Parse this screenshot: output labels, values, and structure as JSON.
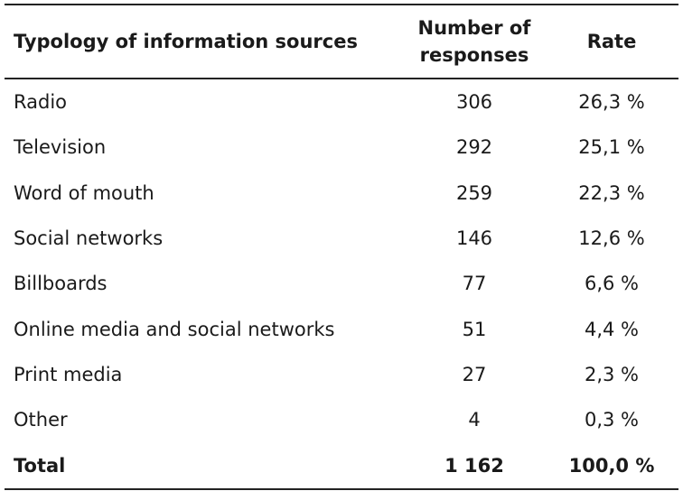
{
  "table": {
    "headers": {
      "source": "Typology of information sources",
      "responses_line1": "Number of",
      "responses_line2": "responses",
      "rate": "Rate"
    },
    "rows": [
      {
        "source": "Radio",
        "responses": "306",
        "rate": "26,3 %"
      },
      {
        "source": "Television",
        "responses": "292",
        "rate": "25,1 %"
      },
      {
        "source": "Word of mouth",
        "responses": "259",
        "rate": "22,3 %"
      },
      {
        "source": "Social networks",
        "responses": "146",
        "rate": "12,6 %"
      },
      {
        "source": "Billboards",
        "responses": "77",
        "rate": "6,6 %"
      },
      {
        "source": "Online media and social networks",
        "responses": "51",
        "rate": "4,4 %"
      },
      {
        "source": "Print media",
        "responses": "27",
        "rate": "2,3 %"
      },
      {
        "source": "Other",
        "responses": "4",
        "rate": "0,3 %"
      }
    ],
    "total": {
      "source": "Total",
      "responses": "1 162",
      "rate": "100,0 %"
    }
  }
}
